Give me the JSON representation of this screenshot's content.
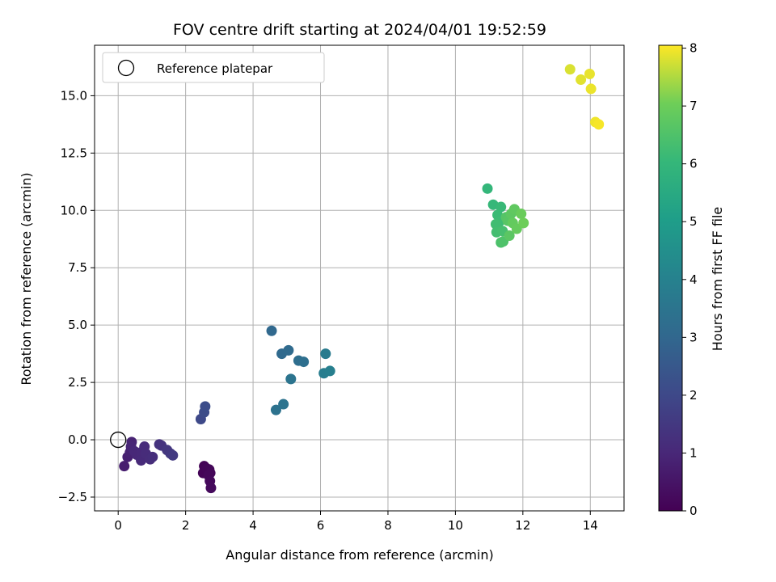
{
  "chart_data": {
    "type": "scatter",
    "title": "FOV centre drift starting at 2024/04/01 19:52:59",
    "xlabel": "Angular distance from reference (arcmin)",
    "ylabel": "Rotation from reference (arcmin)",
    "xlim": [
      -0.7,
      15.0
    ],
    "ylim": [
      -3.1,
      17.2
    ],
    "x_ticks": [
      0,
      2,
      4,
      6,
      8,
      10,
      12,
      14
    ],
    "y_ticks": [
      -2.5,
      0.0,
      2.5,
      5.0,
      7.5,
      10.0,
      12.5,
      15.0
    ],
    "grid": true,
    "legend": {
      "position": "top-left",
      "entries": [
        "Reference platepar"
      ]
    },
    "reference_point": {
      "x": 0,
      "y": 0
    },
    "colorbar": {
      "label": "Hours from first FF file",
      "range": [
        0,
        8.05
      ],
      "ticks": [
        0,
        1,
        2,
        3,
        4,
        5,
        6,
        7,
        8
      ],
      "colormap": "viridis"
    },
    "points": [
      {
        "x": 2.55,
        "y": -1.15,
        "c": 0.05
      },
      {
        "x": 2.52,
        "y": -1.45,
        "c": 0.08
      },
      {
        "x": 2.62,
        "y": -1.25,
        "c": 0.1
      },
      {
        "x": 2.7,
        "y": -1.3,
        "c": 0.12
      },
      {
        "x": 2.73,
        "y": -1.45,
        "c": 0.15
      },
      {
        "x": 2.68,
        "y": -1.55,
        "c": 0.17
      },
      {
        "x": 2.72,
        "y": -1.8,
        "c": 0.2
      },
      {
        "x": 2.75,
        "y": -2.1,
        "c": 0.22
      },
      {
        "x": 0.18,
        "y": -1.15,
        "c": 0.75
      },
      {
        "x": 0.28,
        "y": -0.75,
        "c": 0.8
      },
      {
        "x": 0.35,
        "y": -0.55,
        "c": 0.85
      },
      {
        "x": 0.4,
        "y": -0.1,
        "c": 0.9
      },
      {
        "x": 0.38,
        "y": -0.3,
        "c": 0.95
      },
      {
        "x": 0.48,
        "y": -0.5,
        "c": 1.0
      },
      {
        "x": 0.55,
        "y": -0.65,
        "c": 1.02
      },
      {
        "x": 0.68,
        "y": -0.55,
        "c": 1.05
      },
      {
        "x": 0.68,
        "y": -0.9,
        "c": 1.08
      },
      {
        "x": 0.78,
        "y": -0.3,
        "c": 1.1
      },
      {
        "x": 0.82,
        "y": -0.6,
        "c": 1.12
      },
      {
        "x": 0.95,
        "y": -0.85,
        "c": 1.15
      },
      {
        "x": 1.02,
        "y": -0.75,
        "c": 1.18
      },
      {
        "x": 1.22,
        "y": -0.2,
        "c": 1.3
      },
      {
        "x": 1.28,
        "y": -0.25,
        "c": 1.35
      },
      {
        "x": 1.45,
        "y": -0.45,
        "c": 1.45
      },
      {
        "x": 1.55,
        "y": -0.6,
        "c": 1.5
      },
      {
        "x": 1.62,
        "y": -0.68,
        "c": 1.55
      },
      {
        "x": 2.45,
        "y": 0.9,
        "c": 2.0
      },
      {
        "x": 2.55,
        "y": 1.2,
        "c": 2.1
      },
      {
        "x": 2.58,
        "y": 1.45,
        "c": 2.15
      },
      {
        "x": 4.55,
        "y": 4.75,
        "c": 3.05
      },
      {
        "x": 4.85,
        "y": 3.75,
        "c": 3.1
      },
      {
        "x": 5.05,
        "y": 3.9,
        "c": 3.15
      },
      {
        "x": 5.35,
        "y": 3.45,
        "c": 3.25
      },
      {
        "x": 5.5,
        "y": 3.4,
        "c": 3.3
      },
      {
        "x": 4.68,
        "y": 1.3,
        "c": 3.4
      },
      {
        "x": 4.9,
        "y": 1.55,
        "c": 3.45
      },
      {
        "x": 5.12,
        "y": 2.65,
        "c": 3.5
      },
      {
        "x": 6.15,
        "y": 3.75,
        "c": 3.75
      },
      {
        "x": 6.1,
        "y": 2.9,
        "c": 3.85
      },
      {
        "x": 6.28,
        "y": 3.0,
        "c": 3.9
      },
      {
        "x": 10.95,
        "y": 10.95,
        "c": 6.0
      },
      {
        "x": 11.12,
        "y": 10.25,
        "c": 6.05
      },
      {
        "x": 11.35,
        "y": 10.15,
        "c": 6.1
      },
      {
        "x": 11.25,
        "y": 9.8,
        "c": 6.15
      },
      {
        "x": 11.3,
        "y": 9.5,
        "c": 6.2
      },
      {
        "x": 11.2,
        "y": 9.4,
        "c": 6.25
      },
      {
        "x": 11.22,
        "y": 9.05,
        "c": 6.3
      },
      {
        "x": 11.4,
        "y": 9.1,
        "c": 6.35
      },
      {
        "x": 11.35,
        "y": 8.6,
        "c": 6.45
      },
      {
        "x": 11.42,
        "y": 8.65,
        "c": 6.5
      },
      {
        "x": 11.5,
        "y": 9.7,
        "c": 6.6
      },
      {
        "x": 11.55,
        "y": 9.55,
        "c": 6.65
      },
      {
        "x": 11.6,
        "y": 8.9,
        "c": 6.7
      },
      {
        "x": 11.65,
        "y": 9.85,
        "c": 6.75
      },
      {
        "x": 11.75,
        "y": 10.05,
        "c": 6.8
      },
      {
        "x": 11.7,
        "y": 9.45,
        "c": 6.85
      },
      {
        "x": 11.82,
        "y": 9.2,
        "c": 6.9
      },
      {
        "x": 11.95,
        "y": 9.85,
        "c": 6.95
      },
      {
        "x": 12.02,
        "y": 9.45,
        "c": 7.0
      },
      {
        "x": 13.4,
        "y": 16.15,
        "c": 7.8
      },
      {
        "x": 13.72,
        "y": 15.7,
        "c": 7.85
      },
      {
        "x": 13.98,
        "y": 15.95,
        "c": 7.9
      },
      {
        "x": 14.02,
        "y": 15.3,
        "c": 7.92
      },
      {
        "x": 14.15,
        "y": 13.85,
        "c": 7.95
      },
      {
        "x": 14.25,
        "y": 13.75,
        "c": 8.0
      }
    ]
  }
}
